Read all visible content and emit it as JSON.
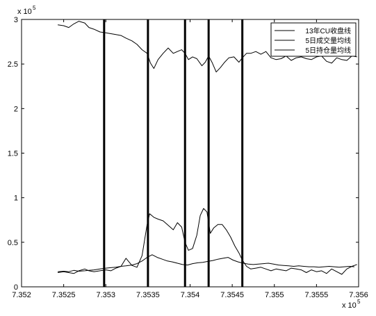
{
  "chart_data": {
    "type": "line",
    "title": "",
    "xlabel": "",
    "ylabel": "",
    "x_exponent_label": "x 10",
    "x_exponent_power": "5",
    "y_exponent_label": "x 10",
    "y_exponent_power": "5",
    "xlim": [
      735200,
      735600
    ],
    "ylim": [
      0,
      300000
    ],
    "x_ticks": [
      735200,
      735250,
      735300,
      735350,
      735400,
      735450,
      735500,
      735550,
      735600
    ],
    "x_tick_labels": [
      "7.352",
      "7.3525",
      "7.353",
      "7.3535",
      "7.354",
      "7.3545",
      "7.355",
      "7.3555",
      "7.356"
    ],
    "y_ticks": [
      0,
      50000,
      100000,
      150000,
      200000,
      250000,
      300000
    ],
    "y_tick_labels": [
      "0",
      "0.5",
      "1",
      "1.5",
      "2",
      "2.5",
      "3"
    ],
    "grid": false,
    "legend_position": "top-right",
    "vertical_lines": [
      735298,
      735350,
      735394,
      735422,
      735462
    ],
    "colors": {
      "line": "#000000",
      "axis": "#000000",
      "background": "#ffffff"
    },
    "series": [
      {
        "name": "13年CU收盘线",
        "x": [
          735243,
          735250,
          735256,
          735262,
          735268,
          735275,
          735280,
          735286,
          735293,
          735300,
          735306,
          735312,
          735318,
          735324,
          735331,
          735337,
          735343,
          735349,
          735353,
          735357,
          735362,
          735368,
          735374,
          735380,
          735385,
          735390,
          735394,
          735398,
          735403,
          735408,
          735414,
          735418,
          735422,
          735426,
          735431,
          735436,
          735441,
          735446,
          735452,
          735458,
          735462,
          735467,
          735472,
          735478,
          735484,
          735490,
          735496,
          735502,
          735508,
          735514,
          735520,
          735526,
          735532,
          735538,
          735544,
          735550,
          735556,
          735562,
          735568,
          735574,
          735580,
          735586,
          735592,
          735598
        ],
        "y": [
          294000,
          293000,
          291000,
          295000,
          298000,
          296000,
          291000,
          289000,
          286000,
          285000,
          284000,
          283000,
          282000,
          279000,
          276000,
          272000,
          266000,
          262000,
          251000,
          245000,
          255000,
          262000,
          268000,
          262000,
          264000,
          266000,
          262000,
          255000,
          258000,
          256000,
          248000,
          252000,
          259000,
          252000,
          241000,
          246000,
          252000,
          257000,
          258000,
          252000,
          257000,
          262000,
          262000,
          264000,
          261000,
          264000,
          257000,
          255000,
          256000,
          259000,
          254000,
          257000,
          258000,
          256000,
          255000,
          258000,
          259000,
          253000,
          251000,
          257000,
          255000,
          254000,
          259000,
          258000
        ]
      },
      {
        "name": "5日成交量均线",
        "x": [
          735243,
          735250,
          735256,
          735262,
          735268,
          735275,
          735280,
          735286,
          735293,
          735300,
          735306,
          735312,
          735318,
          735324,
          735331,
          735337,
          735343,
          735349,
          735352,
          735357,
          735362,
          735368,
          735374,
          735380,
          735385,
          735390,
          735394,
          735398,
          735403,
          735408,
          735412,
          735416,
          735420,
          735424,
          735428,
          735433,
          735438,
          735443,
          735448,
          735453,
          735458,
          735462,
          735467,
          735472,
          735478,
          735484,
          735490,
          735496,
          735502,
          735508,
          735514,
          735520,
          735526,
          735532,
          735538,
          735544,
          735550,
          735556,
          735562,
          735568,
          735574,
          735580,
          735586,
          735592,
          735598
        ],
        "y": [
          16000,
          17000,
          16000,
          15000,
          18000,
          20000,
          18000,
          17000,
          18000,
          19000,
          18000,
          21000,
          23000,
          32000,
          24000,
          22000,
          35000,
          70000,
          82000,
          78000,
          76000,
          74000,
          69000,
          64000,
          72000,
          67000,
          50000,
          41000,
          43000,
          58000,
          80000,
          88000,
          84000,
          60000,
          66000,
          70000,
          70000,
          64000,
          56000,
          46000,
          38000,
          30000,
          23000,
          20000,
          21000,
          22000,
          20000,
          18000,
          20000,
          19000,
          18000,
          21000,
          20000,
          19000,
          16000,
          19000,
          17000,
          18000,
          15000,
          20000,
          17000,
          14000,
          20000,
          23000,
          25000
        ]
      },
      {
        "name": "5日持仓量均线",
        "x": [
          735243,
          735250,
          735256,
          735262,
          735268,
          735275,
          735280,
          735286,
          735293,
          735300,
          735306,
          735312,
          735318,
          735324,
          735331,
          735337,
          735343,
          735349,
          735355,
          735361,
          735367,
          735373,
          735379,
          735385,
          735391,
          735397,
          735403,
          735409,
          735415,
          735421,
          735427,
          735433,
          735439,
          735445,
          735451,
          735457,
          735463,
          735469,
          735475,
          735481,
          735487,
          735493,
          735499,
          735505,
          735511,
          735517,
          735523,
          735529,
          735535,
          735541,
          735547,
          735553,
          735559,
          735565,
          735571,
          735577,
          735583,
          735589,
          735595
        ],
        "y": [
          17000,
          17500,
          17000,
          18500,
          17500,
          18000,
          18500,
          19000,
          20000,
          21000,
          21500,
          22000,
          23000,
          23500,
          24500,
          26000,
          29000,
          33000,
          36000,
          33000,
          31000,
          29000,
          28000,
          26500,
          25000,
          24500,
          26000,
          27000,
          27500,
          28500,
          29500,
          31000,
          32000,
          33000,
          30000,
          28000,
          26500,
          25500,
          25000,
          25500,
          26000,
          26500,
          25500,
          24500,
          24000,
          23500,
          23000,
          23500,
          23000,
          22500,
          22500,
          22000,
          22500,
          23000,
          22500,
          22000,
          22500,
          23000,
          22500
        ]
      }
    ]
  }
}
